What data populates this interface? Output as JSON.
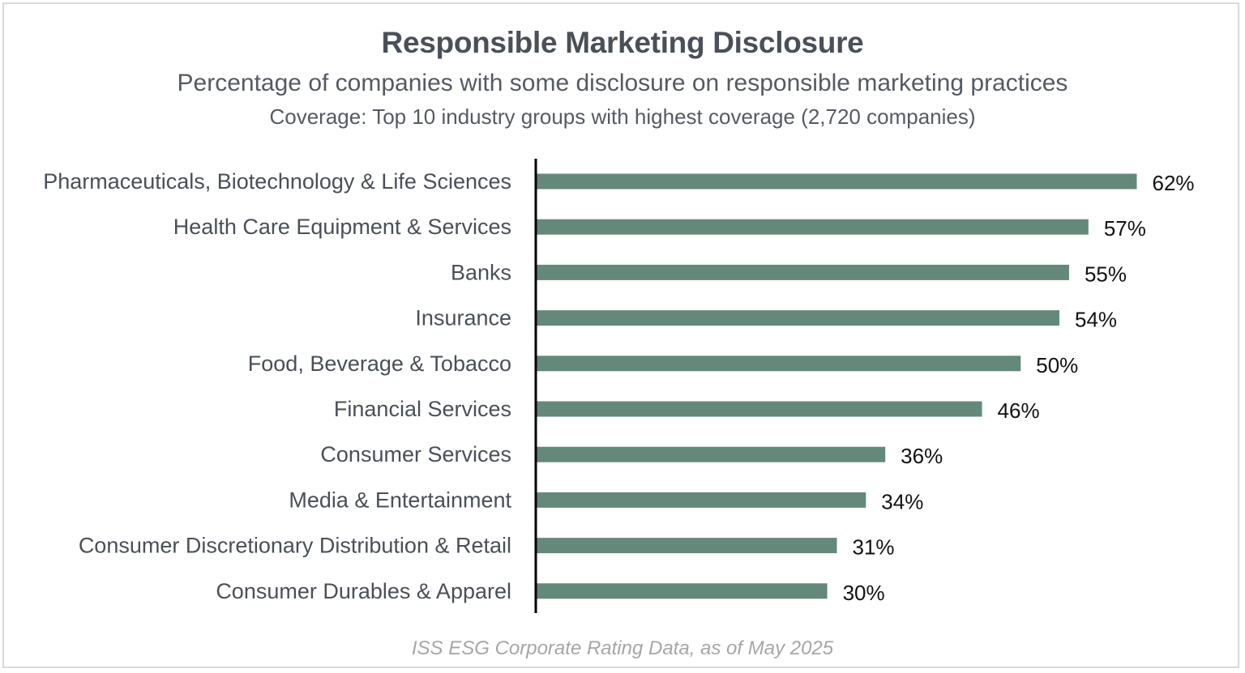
{
  "chart_data": {
    "type": "bar",
    "orientation": "horizontal",
    "title": "Responsible Marketing Disclosure",
    "subtitle": "Percentage of companies with some disclosure on responsible marketing practices",
    "coverage_note": "Coverage: Top 10 industry groups with highest coverage (2,720 companies)",
    "source": "ISS ESG Corporate Rating Data, as of May 2025",
    "categories": [
      "Pharmaceuticals, Biotechnology & Life Sciences",
      "Health Care Equipment & Services",
      "Banks",
      "Insurance",
      "Food, Beverage & Tobacco",
      "Financial Services",
      "Consumer Services",
      "Media & Entertainment",
      "Consumer Discretionary Distribution & Retail",
      "Consumer Durables & Apparel"
    ],
    "values": [
      62,
      57,
      55,
      54,
      50,
      46,
      36,
      34,
      31,
      30
    ],
    "value_labels": [
      "62%",
      "57%",
      "55%",
      "54%",
      "50%",
      "46%",
      "36%",
      "34%",
      "31%",
      "30%"
    ],
    "unit": "%",
    "xlim": [
      0,
      65
    ],
    "bar_color": "#648879",
    "axis_color": "#000000",
    "grid": false,
    "legend": "none"
  }
}
